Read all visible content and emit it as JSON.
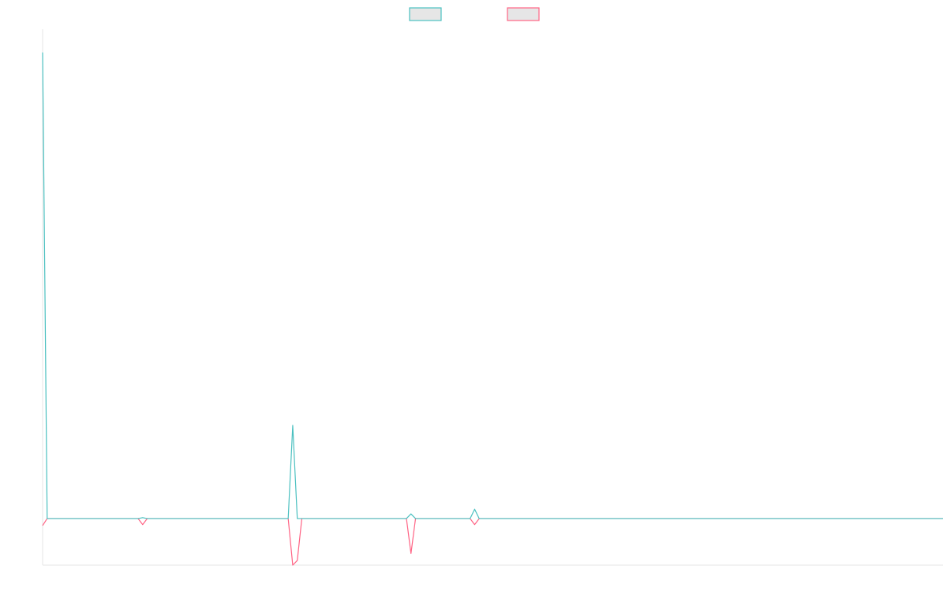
{
  "chart_data": {
    "type": "line",
    "title": "",
    "xlabel": "",
    "ylabel": "",
    "grid": false,
    "legend_position": "top-center",
    "ylim": [
      -10,
      105
    ],
    "x": [
      0,
      1,
      21,
      22,
      23,
      54,
      55,
      56,
      57,
      80,
      81,
      82,
      83,
      84,
      92,
      93,
      94,
      95,
      96,
      97,
      108,
      109,
      110,
      198
    ],
    "series": [
      {
        "color": "#4bc0c0",
        "fill": "#e6e6e6",
        "values": [
          100,
          0,
          0,
          0.2,
          0,
          0,
          20,
          0,
          0,
          0,
          1,
          0,
          0,
          0,
          0,
          0,
          0,
          2,
          0,
          0,
          0,
          0,
          0,
          0
        ]
      },
      {
        "color": "#ff6384",
        "fill": "#e6e6e6",
        "values": [
          -1.5,
          0,
          0,
          -1.3,
          0,
          0,
          -10,
          -9,
          0,
          0,
          -7.5,
          0,
          0,
          0,
          0,
          0,
          0,
          -1.3,
          0,
          0,
          0,
          0,
          0,
          0
        ]
      }
    ]
  }
}
